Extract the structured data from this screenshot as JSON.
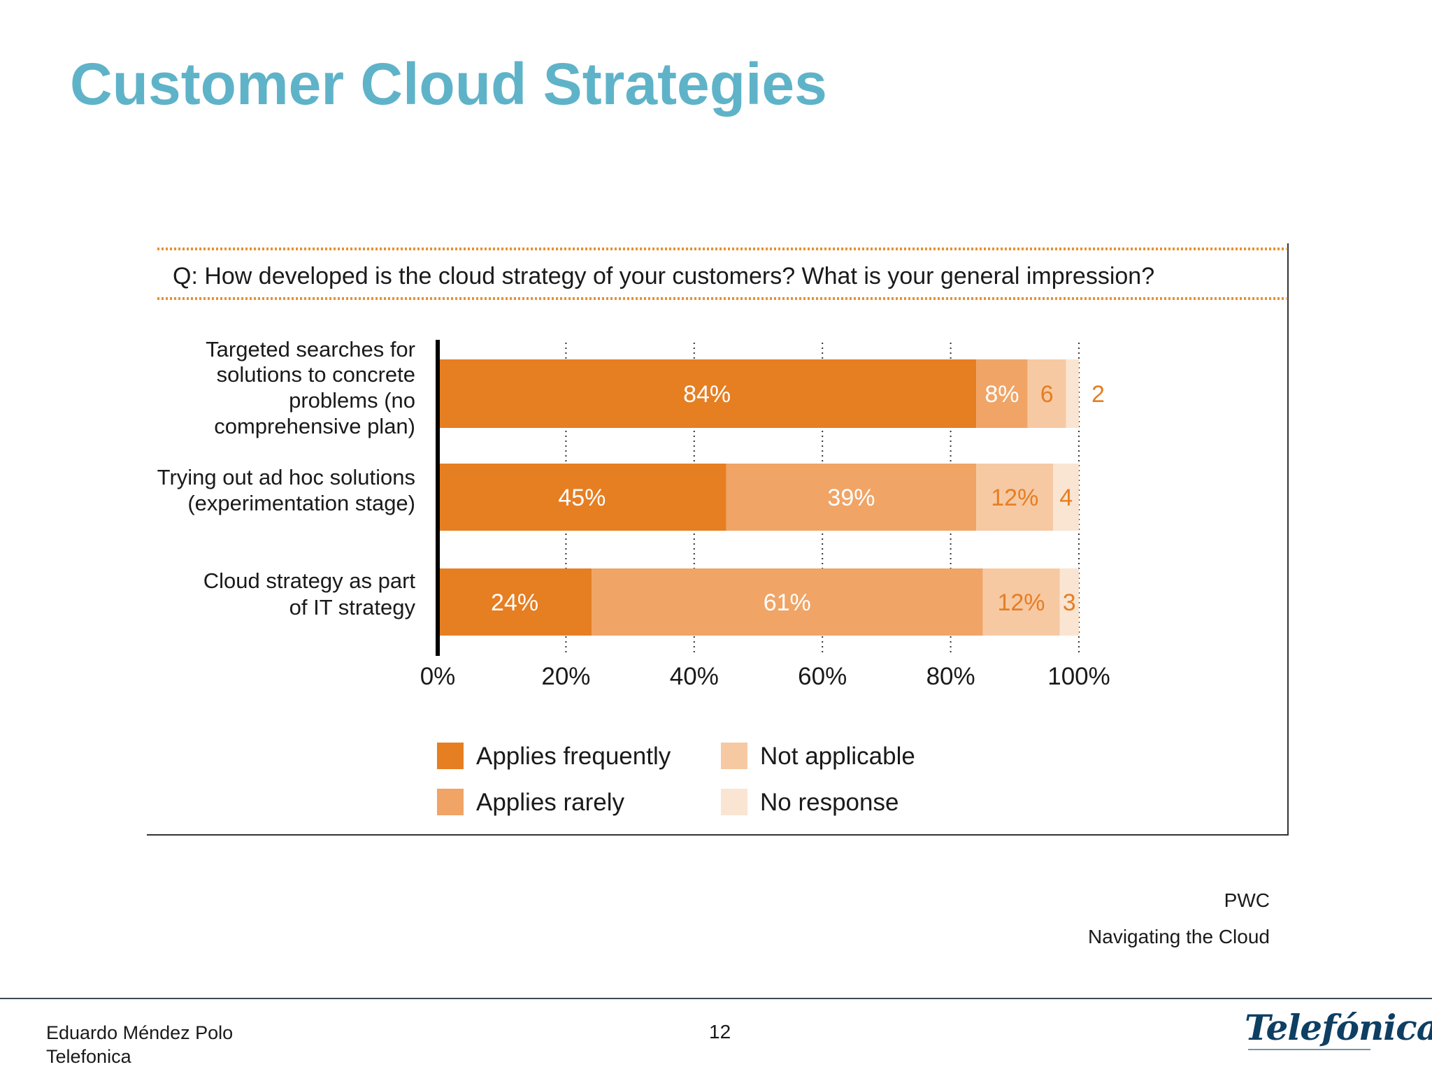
{
  "slide": {
    "title": "Customer Cloud Strategies"
  },
  "source": {
    "line1": "PWC",
    "line2": "Navigating the Cloud"
  },
  "footer": {
    "author": "Eduardo Méndez Polo",
    "company": "Telefonica",
    "page": "12",
    "logo": "Telefónica"
  },
  "colors": {
    "applies_frequently": "#e67e22",
    "applies_rarely": "#f0a465",
    "not_applicable": "#f6c9a3",
    "no_response": "#fae4d2",
    "title": "#5fb3c8",
    "dotted": "#e8902e"
  },
  "chart_data": {
    "type": "bar",
    "orientation": "horizontal",
    "stacked": true,
    "title": "Q: How developed is the cloud strategy of your customers? What is your general impression?",
    "categories": [
      [
        "Targeted searches for",
        "solutions to concrete",
        "problems (no",
        "comprehensive plan)"
      ],
      [
        "Trying out ad hoc solutions",
        "(experimentation stage)"
      ],
      [
        "Cloud strategy as part",
        "of IT strategy"
      ]
    ],
    "series": [
      {
        "name": "Applies frequently",
        "values": [
          84,
          45,
          24
        ],
        "labels": [
          "84%",
          "45%",
          "24%"
        ]
      },
      {
        "name": "Applies rarely",
        "values": [
          8,
          39,
          61
        ],
        "labels": [
          "8%",
          "39%",
          "61%"
        ]
      },
      {
        "name": "Not applicable",
        "values": [
          6,
          12,
          12
        ],
        "labels": [
          "6",
          "12%",
          "12%"
        ]
      },
      {
        "name": "No response",
        "values": [
          2,
          4,
          3
        ],
        "labels": [
          "2",
          "4",
          "3"
        ]
      }
    ],
    "xlim": [
      0,
      100
    ],
    "xticks": [
      0,
      20,
      40,
      60,
      80,
      100
    ],
    "xtick_labels": [
      "0%",
      "20%",
      "40%",
      "60%",
      "80%",
      "100%"
    ],
    "grid": "dotted vertical",
    "legend": [
      [
        "Applies frequently",
        "Not applicable"
      ],
      [
        "Applies rarely",
        "No response"
      ]
    ]
  }
}
